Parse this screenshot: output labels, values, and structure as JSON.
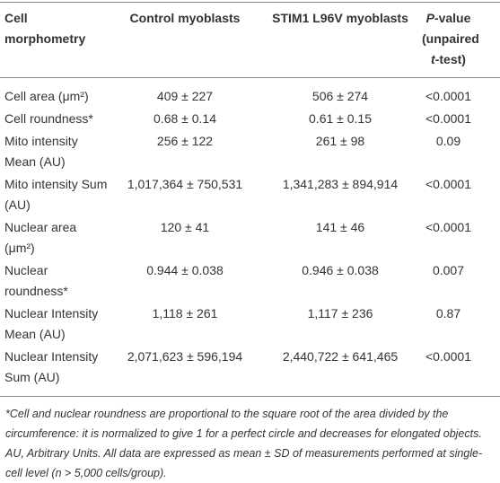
{
  "table": {
    "header": [
      "Cell morphometry",
      "Control myoblasts",
      "STIM1 L96V myoblasts",
      [
        "P",
        "-value (unpaired ",
        "t",
        "-test)"
      ]
    ],
    "rows": [
      [
        "Cell area (μm²)",
        "409 ± 227",
        "506 ± 274",
        "<0.0001"
      ],
      [
        "Cell roundness*",
        "0.68 ± 0.14",
        "0.61 ± 0.15",
        "<0.0001"
      ],
      [
        "Mito intensity Mean (AU)",
        "256 ± 122",
        "261 ± 98",
        "0.09"
      ],
      [
        "Mito intensity Sum (AU)",
        "1,017,364 ± 750,531",
        "1,341,283 ± 894,914",
        "<0.0001"
      ],
      [
        "Nuclear area (μm²)",
        "120 ± 41",
        "141 ± 46",
        "<0.0001"
      ],
      [
        "Nuclear roundness*",
        "0.944 ± 0.038",
        "0.946 ± 0.038",
        "0.007"
      ],
      [
        "Nuclear Intensity Mean (AU)",
        "1,118 ± 261",
        "1,117 ± 236",
        "0.87"
      ],
      [
        "Nuclear Intensity Sum (AU)",
        "2,071,623 ± 596,194",
        "2,440,722 ± 641,465",
        "<0.0001"
      ]
    ],
    "footnote": "*Cell and nuclear roundness are proportional to the square root of the area divided by the circumference: it is normalized to give 1 for a perfect circle and decreases for elongated objects. AU, Arbitrary Units. All data are expressed as mean ± SD of measurements performed at single-cell level (n > 5,000 cells/group)."
  }
}
